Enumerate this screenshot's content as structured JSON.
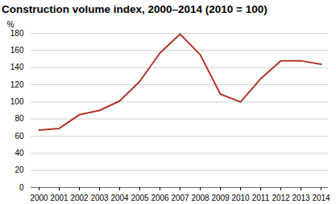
{
  "chart_data": {
    "type": "line",
    "title": "Construction volume index, 2000–2014 (2010 = 100)",
    "ylabel": "%",
    "categories": [
      "2000",
      "2001",
      "2002",
      "2003",
      "2004",
      "2005",
      "2006",
      "2007",
      "2008",
      "2009",
      "2010",
      "2011",
      "2012",
      "2013",
      "2014"
    ],
    "values": [
      67,
      69,
      85,
      90,
      101,
      124,
      157,
      179,
      155,
      109,
      100,
      127,
      148,
      148,
      144
    ],
    "color": "#b0362b",
    "ylim": [
      0,
      180
    ],
    "yticks": [
      0,
      20,
      40,
      60,
      80,
      100,
      120,
      140,
      160,
      180
    ],
    "grid": true
  }
}
